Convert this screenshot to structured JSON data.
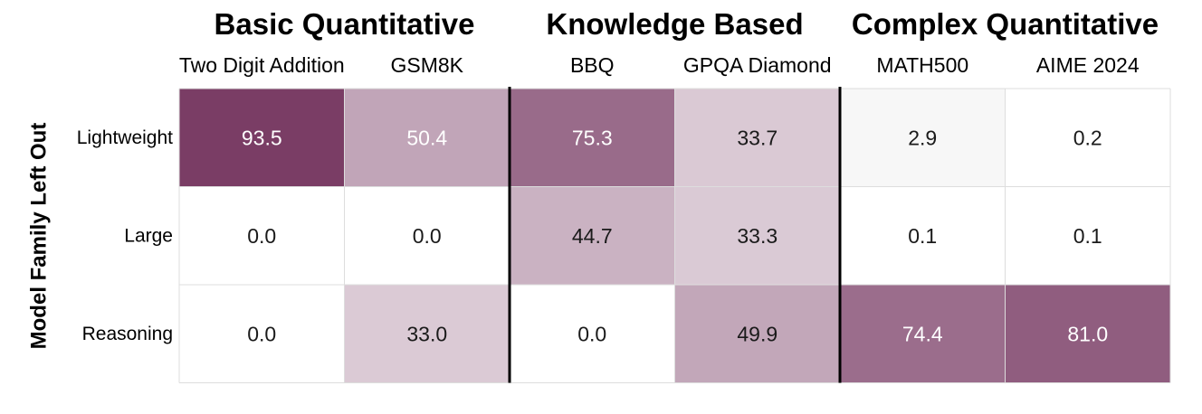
{
  "chart_data": {
    "type": "heatmap",
    "groups": [
      {
        "label": "Basic Quantitative",
        "columns": [
          "Two Digit Addition",
          "GSM8K"
        ]
      },
      {
        "label": "Knowledge Based",
        "columns": [
          "BBQ",
          "GPQA Diamond"
        ]
      },
      {
        "label": "Complex Quantitative",
        "columns": [
          "MATH500",
          "AIME 2024"
        ]
      }
    ],
    "x": [
      "Two Digit Addition",
      "GSM8K",
      "BBQ",
      "GPQA Diamond",
      "MATH500",
      "AIME 2024"
    ],
    "y": [
      "Lightweight",
      "Large",
      "Reasoning"
    ],
    "values": [
      [
        93.5,
        50.4,
        75.3,
        33.7,
        2.9,
        0.2
      ],
      [
        0.0,
        0.0,
        44.7,
        33.3,
        0.1,
        0.1
      ],
      [
        0.0,
        33.0,
        0.0,
        49.9,
        74.4,
        81.0
      ]
    ],
    "value_labels": [
      [
        "93.5",
        "50.4",
        "75.3",
        "33.7",
        "2.9",
        "0.2"
      ],
      [
        "0.0",
        "0.0",
        "44.7",
        "33.3",
        "0.1",
        "0.1"
      ],
      [
        "0.0",
        "33.0",
        "0.0",
        "49.9",
        "74.4",
        "81.0"
      ]
    ],
    "ylabel": "Model Family Left Out",
    "xlabel": "",
    "title": "",
    "colormap": {
      "low": "#ffffff",
      "high": "#6e2c58"
    },
    "value_range": [
      0,
      100
    ],
    "grid": true,
    "legend": "none"
  }
}
